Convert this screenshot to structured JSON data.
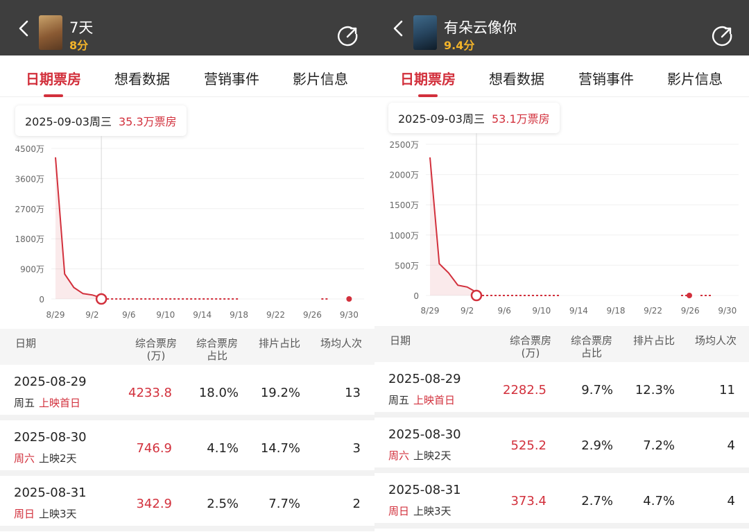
{
  "panels": [
    {
      "header": {
        "title": "7天",
        "score": "8分"
      },
      "tabs": [
        "日期票房",
        "想看数据",
        "营销事件",
        "影片信息"
      ],
      "tooltip": {
        "date": "2025-09-03周三",
        "box": "35.3万票房"
      },
      "chart_data": {
        "type": "line",
        "y_ticks": [
          "4500万",
          "3600万",
          "2700万",
          "1800万",
          "900万",
          "0"
        ],
        "y_values": [
          4500,
          3600,
          2700,
          1800,
          900,
          0
        ],
        "x_ticks": [
          "8/29",
          "9/2",
          "9/6",
          "9/10",
          "9/14",
          "9/18",
          "9/22",
          "9/26",
          "9/30"
        ],
        "ylim": [
          0,
          4500
        ],
        "series": [
          {
            "values": [
              {
                "day": 0,
                "y": 4233.8
              },
              {
                "day": 1,
                "y": 746.9
              },
              {
                "day": 2,
                "y": 342.9
              },
              {
                "day": 3,
                "y": 160
              },
              {
                "day": 4,
                "y": 120
              },
              {
                "day": 5,
                "y": 35.3
              }
            ]
          }
        ],
        "highlight_day": 5,
        "dotted_until_day": 20,
        "end_day": 32
      },
      "table": {
        "headers": {
          "date": "日期",
          "box": "综合票房\n(万)",
          "share": "综合票房\n占比",
          "sched": "排片占比",
          "avg": "场均人次"
        },
        "rows": [
          {
            "date": "2025-08-29",
            "weekday": "周五",
            "tag": "上映首日",
            "weekday_red": false,
            "tag_red": true,
            "box": "4233.8",
            "share": "18.0%",
            "sched": "19.2%",
            "avg": "13"
          },
          {
            "date": "2025-08-30",
            "weekday": "周六",
            "tag": "上映2天",
            "weekday_red": true,
            "tag_red": false,
            "box": "746.9",
            "share": "4.1%",
            "sched": "14.7%",
            "avg": "3"
          },
          {
            "date": "2025-08-31",
            "weekday": "周日",
            "tag": "上映3天",
            "weekday_red": true,
            "tag_red": false,
            "box": "342.9",
            "share": "2.5%",
            "sched": "7.7%",
            "avg": "2"
          }
        ]
      },
      "colors": {
        "accent": "#d2303c",
        "poster_a": "#c9a36b",
        "poster_b": "#5a3a22"
      }
    },
    {
      "header": {
        "title": "有朵云像你",
        "score": "9.4分"
      },
      "tabs": [
        "日期票房",
        "想看数据",
        "营销事件",
        "影片信息"
      ],
      "tooltip": {
        "date": "2025-09-03周三",
        "box": "53.1万票房"
      },
      "chart_data": {
        "type": "line",
        "y_ticks": [
          "2500万",
          "2000万",
          "1500万",
          "1000万",
          "500万",
          "0"
        ],
        "y_values": [
          2500,
          2000,
          1500,
          1000,
          500,
          0
        ],
        "x_ticks": [
          "8/29",
          "9/2",
          "9/6",
          "9/10",
          "9/14",
          "9/18",
          "9/22",
          "9/26",
          "9/30"
        ],
        "ylim": [
          0,
          2500
        ],
        "series": [
          {
            "values": [
              {
                "day": 0,
                "y": 2282.5
              },
              {
                "day": 1,
                "y": 525.2
              },
              {
                "day": 2,
                "y": 373.4
              },
              {
                "day": 3,
                "y": 170
              },
              {
                "day": 4,
                "y": 140
              },
              {
                "day": 5,
                "y": 53.1
              }
            ]
          }
        ],
        "highlight_day": 5,
        "dotted_until_day": 14,
        "end_day": 30
      },
      "table": {
        "headers": {
          "date": "日期",
          "box": "综合票房\n(万)",
          "share": "综合票房\n占比",
          "sched": "排片占比",
          "avg": "场均人次"
        },
        "rows": [
          {
            "date": "2025-08-29",
            "weekday": "周五",
            "tag": "上映首日",
            "weekday_red": false,
            "tag_red": true,
            "box": "2282.5",
            "share": "9.7%",
            "sched": "12.3%",
            "avg": "11"
          },
          {
            "date": "2025-08-30",
            "weekday": "周六",
            "tag": "上映2天",
            "weekday_red": true,
            "tag_red": false,
            "box": "525.2",
            "share": "2.9%",
            "sched": "7.2%",
            "avg": "4"
          },
          {
            "date": "2025-08-31",
            "weekday": "周日",
            "tag": "上映3天",
            "weekday_red": true,
            "tag_red": false,
            "box": "373.4",
            "share": "2.7%",
            "sched": "4.7%",
            "avg": "4"
          }
        ]
      },
      "colors": {
        "accent": "#d2303c",
        "poster_a": "#27455f",
        "poster_b": "#0f1c28"
      }
    }
  ]
}
